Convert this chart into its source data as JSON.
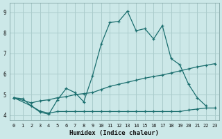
{
  "xlabel": "Humidex (Indice chaleur)",
  "bg_color": "#cce8e8",
  "grid_color": "#aacccc",
  "line_color": "#1a6e6e",
  "xlim": [
    -0.5,
    23.5
  ],
  "ylim": [
    3.75,
    9.45
  ],
  "xticks": [
    0,
    1,
    2,
    3,
    4,
    5,
    6,
    7,
    8,
    9,
    10,
    11,
    12,
    13,
    14,
    15,
    16,
    17,
    18,
    19,
    20,
    21,
    22,
    23
  ],
  "yticks": [
    4,
    5,
    6,
    7,
    8,
    9
  ],
  "line1_x": [
    0,
    1,
    2,
    3,
    4,
    5,
    6,
    7,
    8,
    9,
    10,
    11,
    12,
    13,
    14,
    15,
    16,
    17,
    18,
    19,
    20,
    21,
    22
  ],
  "line1_y": [
    4.85,
    4.8,
    4.45,
    4.15,
    4.05,
    4.75,
    5.3,
    5.1,
    4.65,
    5.9,
    7.45,
    8.5,
    8.55,
    9.05,
    8.1,
    8.2,
    7.7,
    8.35,
    6.75,
    6.45,
    5.5,
    4.85,
    4.45
  ],
  "line2_x": [
    0,
    2,
    3,
    4,
    5,
    6,
    7,
    8,
    9,
    10,
    11,
    12,
    13,
    14,
    15,
    16,
    17,
    18,
    19,
    20,
    21,
    22,
    23
  ],
  "line2_y": [
    4.85,
    4.6,
    4.7,
    4.75,
    4.85,
    4.9,
    5.0,
    5.05,
    5.1,
    5.25,
    5.4,
    5.5,
    5.6,
    5.7,
    5.8,
    5.88,
    5.95,
    6.05,
    6.15,
    6.25,
    6.35,
    6.42,
    6.5
  ],
  "line3_x": [
    0,
    2,
    3,
    4,
    5,
    6,
    7,
    8,
    9,
    10,
    11,
    12,
    13,
    14,
    15,
    16,
    17,
    18,
    19,
    20,
    21,
    22,
    23
  ],
  "line3_y": [
    4.85,
    4.45,
    4.2,
    4.1,
    4.18,
    4.18,
    4.18,
    4.18,
    4.18,
    4.18,
    4.18,
    4.18,
    4.18,
    4.18,
    4.18,
    4.18,
    4.18,
    4.18,
    4.18,
    4.25,
    4.3,
    4.35,
    4.35
  ]
}
